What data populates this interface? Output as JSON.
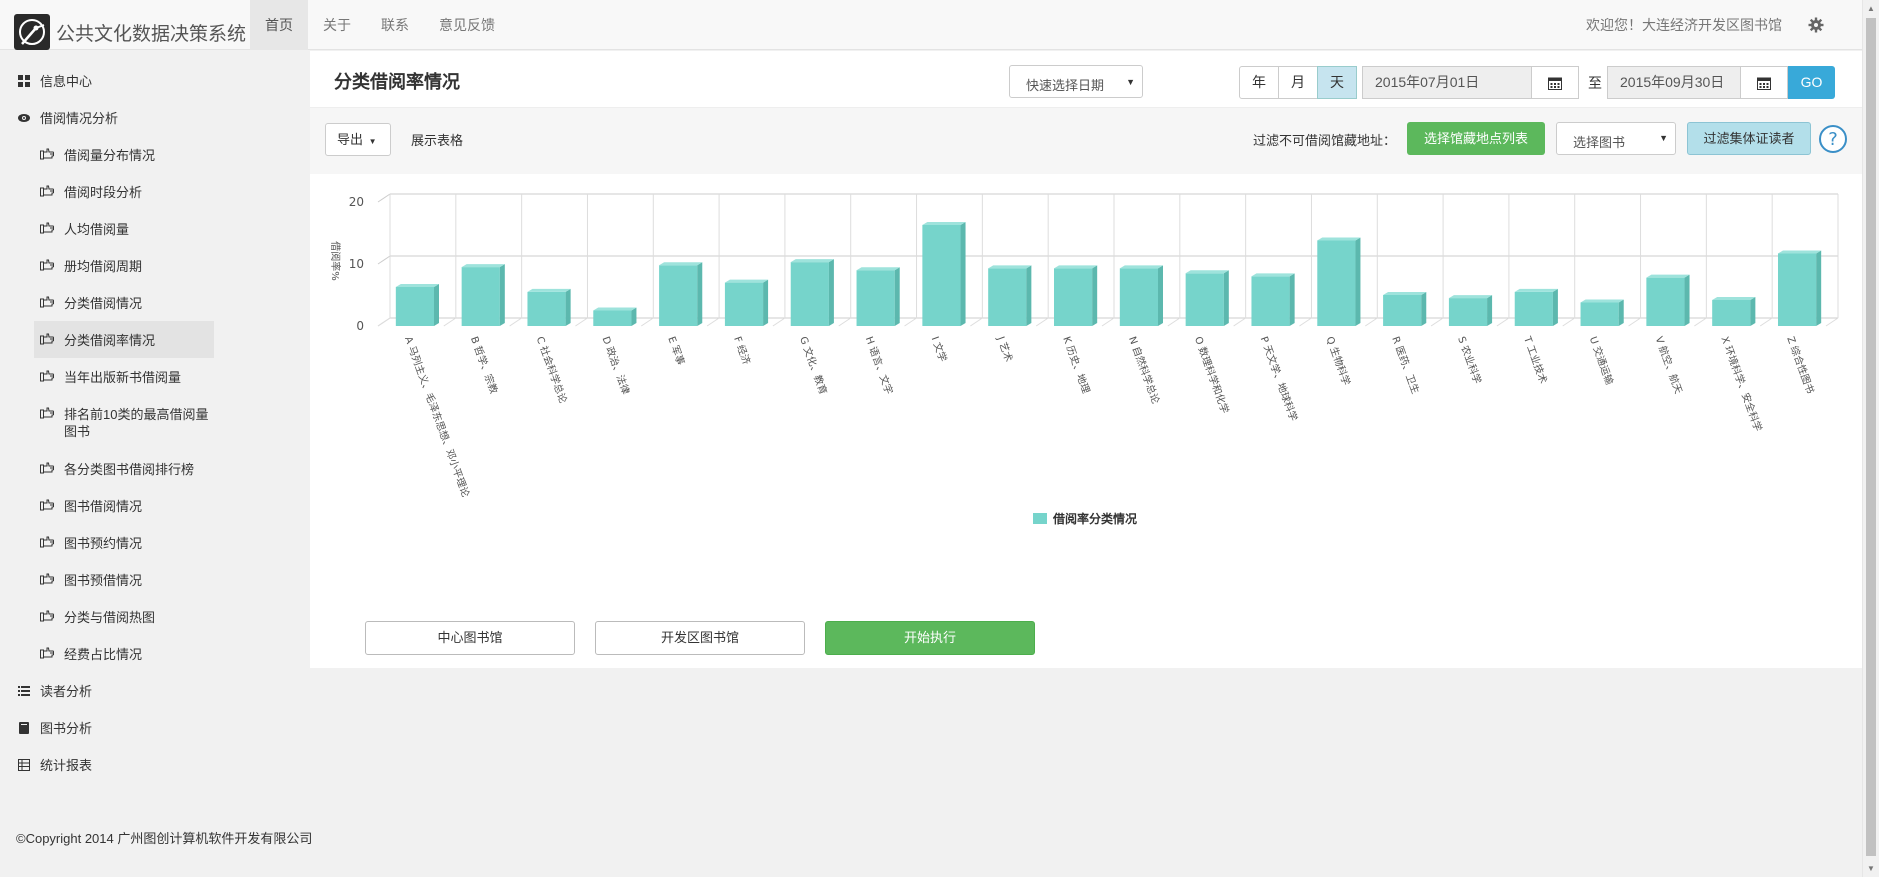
{
  "app": {
    "title": "公共文化数据决策系统",
    "welcome": "欢迎您！大连经济开发区图书馆"
  },
  "nav": [
    "首页",
    "关于",
    "联系",
    "意见反馈"
  ],
  "sidebar": {
    "top": [
      {
        "label": "信息中心",
        "icon": "grid-icon"
      },
      {
        "label": "借阅情况分析",
        "icon": "eye-icon"
      }
    ],
    "subitems": [
      "借阅量分布情况",
      "借阅时段分析",
      "人均借阅量",
      "册均借阅周期",
      "分类借阅情况",
      "分类借阅率情况",
      "当年出版新书借阅量",
      "排名前10类的最高借阅量图书",
      "各分类图书借阅排行榜",
      "图书借阅情况",
      "图书预约情况",
      "图书预借情况",
      "分类与借阅热图",
      "经费占比情况"
    ],
    "active_index": 5,
    "bottom": [
      {
        "label": "读者分析",
        "icon": "list-icon"
      },
      {
        "label": "图书分析",
        "icon": "book-icon"
      },
      {
        "label": "统计报表",
        "icon": "table-icon"
      }
    ]
  },
  "panel": {
    "title": "分类借阅率情况",
    "quick_date": "快速选择日期",
    "periods": [
      "年",
      "月",
      "天"
    ],
    "active_period": "天",
    "date_from": "2015年07月01日",
    "to_label": "至",
    "date_to": "2015年09月30日",
    "go": "GO"
  },
  "toolbar": {
    "export": "导出",
    "show_table": "展示表格",
    "filter_label": "过滤不可借阅馆藏地址：",
    "location_button": "选择馆藏地点列表",
    "book_select": "选择图书",
    "filter_reader": "过滤集体证读者"
  },
  "chart_data": {
    "type": "bar",
    "ylabel": "借阅率%",
    "ylim": [
      0,
      20
    ],
    "yticks": [
      0,
      10,
      20
    ],
    "legend": "借阅率分类情况",
    "color": "#76d4cb",
    "categories": [
      "A 马列主义、毛泽东思想、邓小平理论",
      "B 哲学、宗教",
      "C 社会科学总论",
      "D 政治、法律",
      "E 军事",
      "F 经济",
      "G 文化、教育",
      "H 语言、文字",
      "I 文学",
      "J 艺术",
      "K 历史、地理",
      "N 自然科学总论",
      "O 数理科学和化学",
      "P 天文学、地球科学",
      "Q 生物科学",
      "R 医药、卫生",
      "S 农业科学",
      "T 工业技术",
      "U 交通运输",
      "V 航空、航天",
      "X 环境科学、安全科学",
      "Z 综合性图书"
    ],
    "values": [
      6.3,
      9.5,
      5.5,
      2.5,
      9.8,
      7.0,
      10.3,
      9.0,
      16.3,
      9.3,
      9.3,
      9.3,
      8.5,
      8.0,
      13.8,
      5.0,
      4.5,
      5.5,
      3.8,
      7.8,
      4.2,
      11.7
    ]
  },
  "actions": [
    "中心图书馆",
    "开发区图书馆",
    "开始执行"
  ],
  "footer": "©Copyright 2014 广州图创计算机软件开发有限公司"
}
